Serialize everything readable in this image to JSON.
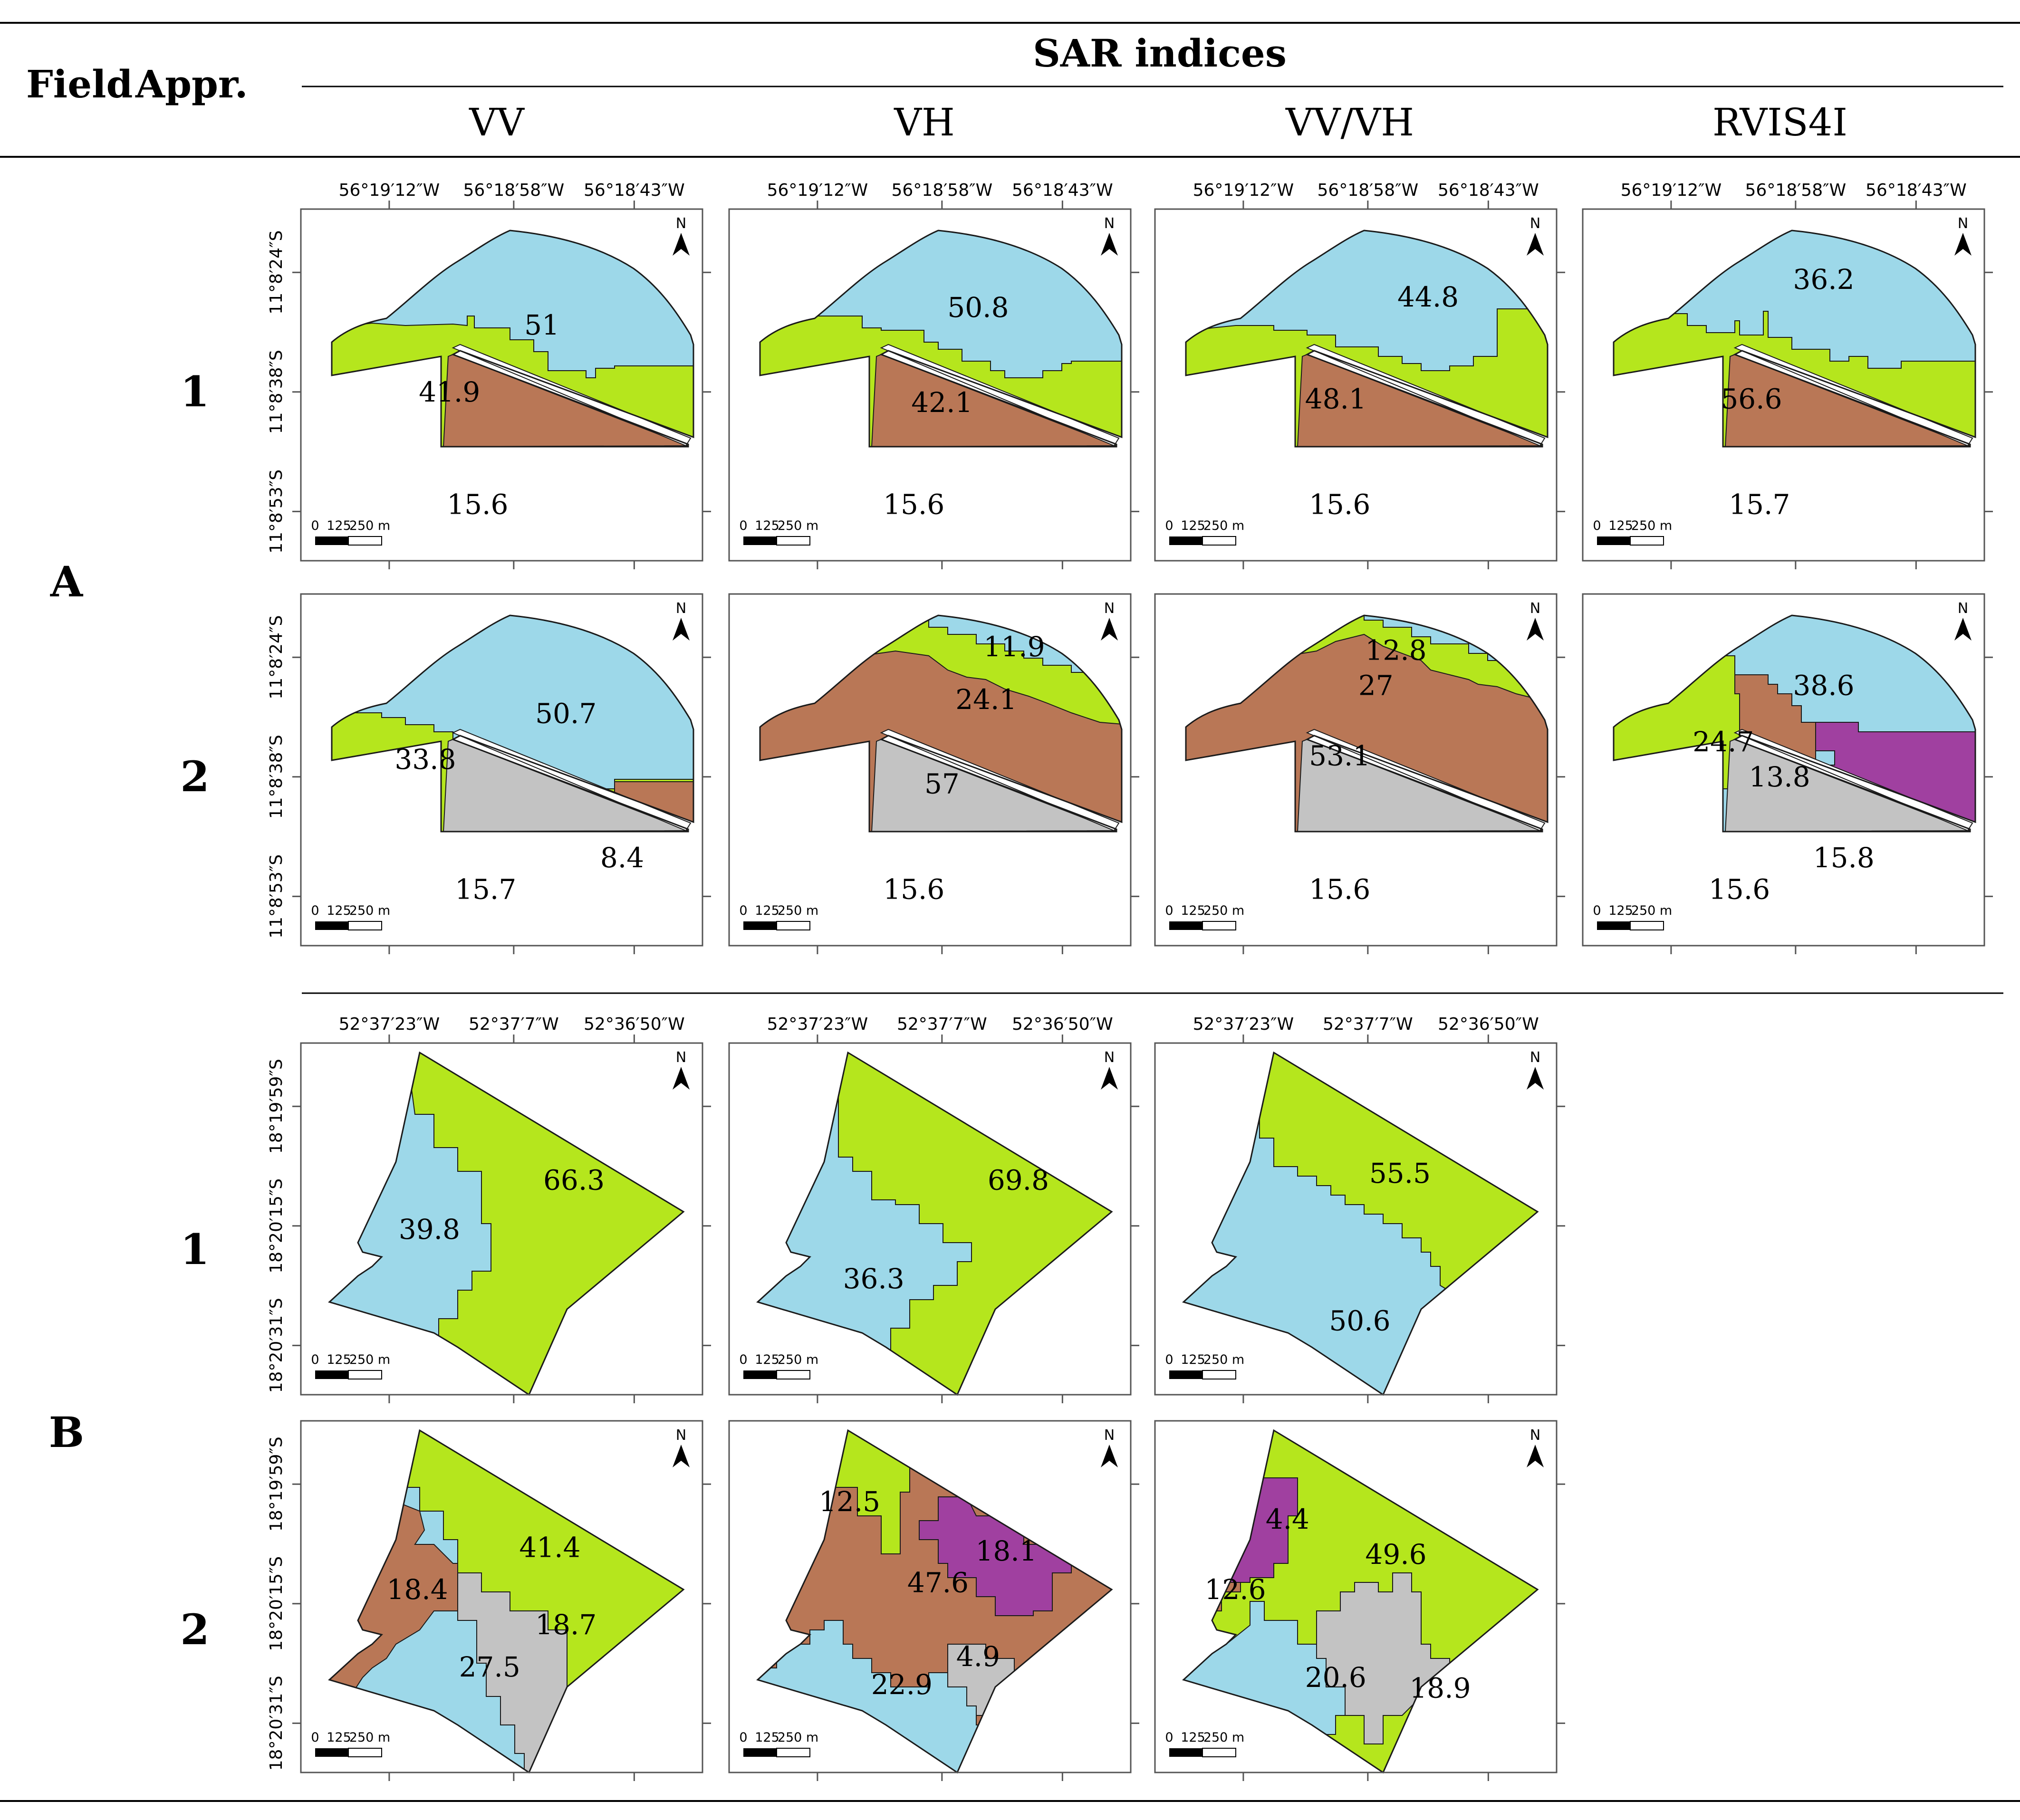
{
  "header": {
    "field_label": "Field",
    "appr_label": "Appr.",
    "sar_title": "SAR indices",
    "columns": [
      "VV",
      "VH",
      "VV/VH",
      "RVIS4I"
    ]
  },
  "colors": {
    "blue": "#9dd8e9",
    "green": "#b5e61d",
    "brown": "#b97756",
    "gray": "#c3c3c3",
    "purple": "#a040a0",
    "outline": "#1a1a1a",
    "frame": "#555555"
  },
  "common": {
    "north_label": "N",
    "scale_labels": [
      "0",
      "125",
      "250 m"
    ]
  },
  "fields": [
    {
      "label": "A",
      "lon_ticks": [
        "56°19′12″W",
        "56°18′58″W",
        "56°18′43″W"
      ],
      "lat_ticks": [
        "11°8′24″S",
        "11°8′38″S",
        "11°8′53″S"
      ],
      "approaches": [
        {
          "label": "1",
          "maps": [
            {
              "index": "VV",
              "zones": [
                {
                  "value": "51",
                  "color": "blue"
                },
                {
                  "value": "41.9",
                  "color": "green"
                },
                {
                  "value": "15.6",
                  "color": "brown"
                }
              ]
            },
            {
              "index": "VH",
              "zones": [
                {
                  "value": "50.8",
                  "color": "blue"
                },
                {
                  "value": "42.1",
                  "color": "green"
                },
                {
                  "value": "15.6",
                  "color": "brown"
                }
              ]
            },
            {
              "index": "VV/VH",
              "zones": [
                {
                  "value": "44.8",
                  "color": "blue"
                },
                {
                  "value": "48.1",
                  "color": "green"
                },
                {
                  "value": "15.6",
                  "color": "brown"
                }
              ]
            },
            {
              "index": "RVIS4I",
              "zones": [
                {
                  "value": "36.2",
                  "color": "blue"
                },
                {
                  "value": "56.6",
                  "color": "green"
                },
                {
                  "value": "15.7",
                  "color": "brown"
                }
              ]
            }
          ]
        },
        {
          "label": "2",
          "maps": [
            {
              "index": "VV",
              "zones": [
                {
                  "value": "50.7",
                  "color": "blue"
                },
                {
                  "value": "33.8",
                  "color": "green"
                },
                {
                  "value": "15.7",
                  "color": "gray"
                },
                {
                  "value": "8.4",
                  "color": "brown"
                }
              ]
            },
            {
              "index": "VH",
              "zones": [
                {
                  "value": "11.9",
                  "color": "blue"
                },
                {
                  "value": "24.1",
                  "color": "green"
                },
                {
                  "value": "57",
                  "color": "brown"
                },
                {
                  "value": "15.6",
                  "color": "gray"
                }
              ]
            },
            {
              "index": "VV/VH",
              "zones": [
                {
                  "value": "12.8",
                  "color": "blue"
                },
                {
                  "value": "27",
                  "color": "green"
                },
                {
                  "value": "53.1",
                  "color": "brown"
                },
                {
                  "value": "15.6",
                  "color": "gray"
                }
              ]
            },
            {
              "index": "RVIS4I",
              "zones": [
                {
                  "value": "38.6",
                  "color": "blue"
                },
                {
                  "value": "24.7",
                  "color": "green"
                },
                {
                  "value": "13.8",
                  "color": "brown"
                },
                {
                  "value": "15.8",
                  "color": "purple"
                },
                {
                  "value": "15.6",
                  "color": "gray"
                }
              ]
            }
          ]
        }
      ]
    },
    {
      "label": "B",
      "lon_ticks": [
        "52°37′23″W",
        "52°37′7″W",
        "52°36′50″W"
      ],
      "lat_ticks": [
        "18°19′59″S",
        "18°20′15″S",
        "18°20′31″S"
      ],
      "approaches": [
        {
          "label": "1",
          "maps": [
            {
              "index": "VV",
              "zones": [
                {
                  "value": "66.3",
                  "color": "green"
                },
                {
                  "value": "39.8",
                  "color": "blue"
                }
              ]
            },
            {
              "index": "VH",
              "zones": [
                {
                  "value": "69.8",
                  "color": "green"
                },
                {
                  "value": "36.3",
                  "color": "blue"
                }
              ]
            },
            {
              "index": "VV/VH",
              "zones": [
                {
                  "value": "55.5",
                  "color": "green"
                },
                {
                  "value": "50.6",
                  "color": "blue"
                }
              ]
            }
          ]
        },
        {
          "label": "2",
          "maps": [
            {
              "index": "VV",
              "zones": [
                {
                  "value": "41.4",
                  "color": "green"
                },
                {
                  "value": "18.4",
                  "color": "brown"
                },
                {
                  "value": "18.7",
                  "color": "gray"
                },
                {
                  "value": "27.5",
                  "color": "blue"
                }
              ]
            },
            {
              "index": "VH",
              "zones": [
                {
                  "value": "12.5",
                  "color": "green"
                },
                {
                  "value": "18.1",
                  "color": "purple"
                },
                {
                  "value": "47.6",
                  "color": "brown"
                },
                {
                  "value": "4.9",
                  "color": "gray"
                },
                {
                  "value": "22.9",
                  "color": "blue"
                }
              ]
            },
            {
              "index": "VV/VH",
              "zones": [
                {
                  "value": "4.4",
                  "color": "purple"
                },
                {
                  "value": "49.6",
                  "color": "green"
                },
                {
                  "value": "12.6",
                  "color": "brown"
                },
                {
                  "value": "20.6",
                  "color": "blue"
                },
                {
                  "value": "18.9",
                  "color": "gray"
                }
              ]
            }
          ]
        }
      ]
    }
  ]
}
